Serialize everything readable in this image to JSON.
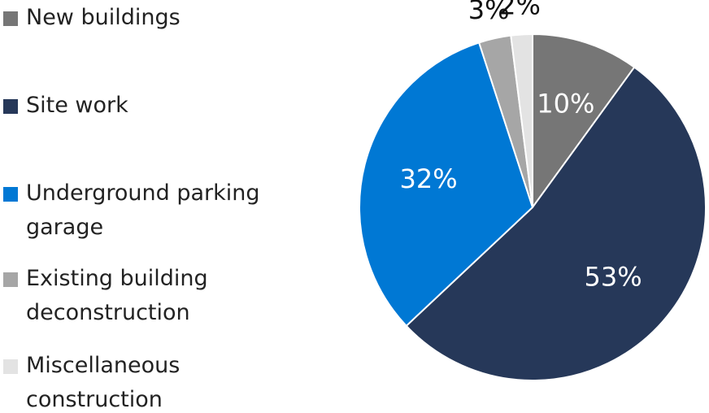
{
  "chart_data": {
    "type": "pie",
    "categories": [
      "New buildings",
      "Site work",
      "Underground parking garage",
      "Existing building deconstruction",
      "Miscellaneous construction"
    ],
    "values": [
      10,
      53,
      32,
      3,
      2
    ],
    "value_labels": [
      "10%",
      "53%",
      "32%",
      "3%",
      "2%"
    ],
    "colors": [
      "#767676",
      "#263859",
      "#0078d4",
      "#a6a6a6",
      "#e3e3e3"
    ],
    "legend": "left"
  }
}
